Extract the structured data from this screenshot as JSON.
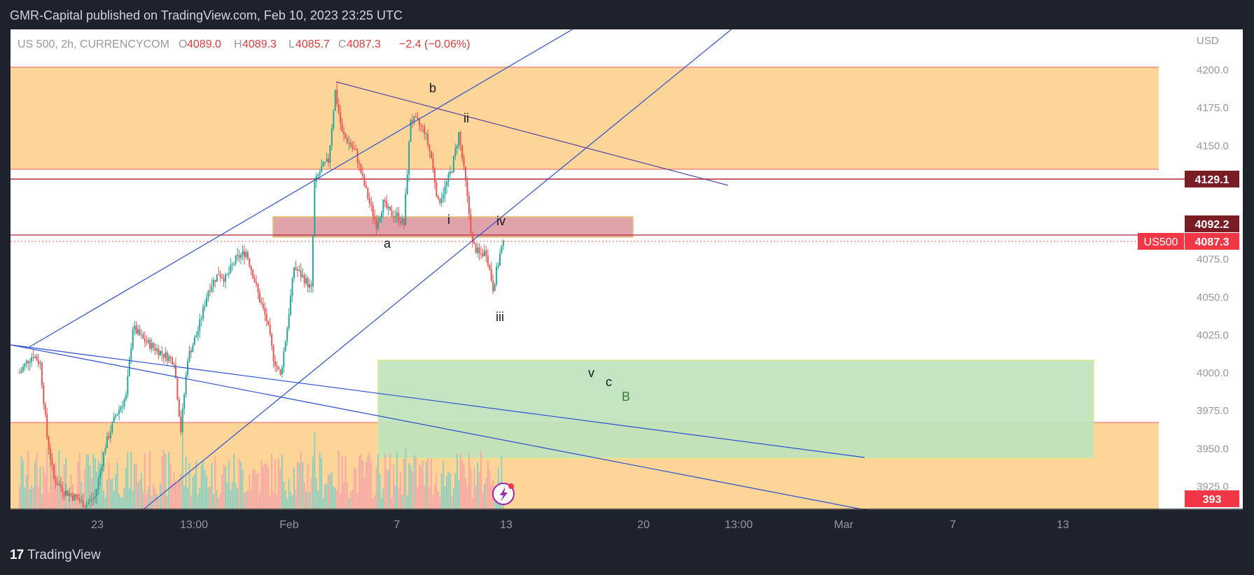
{
  "header": {
    "publisher_line": "GMR-Capital published on TradingView.com, Feb 10, 2023 23:25 UTC"
  },
  "footer": {
    "brand": "TradingView"
  },
  "legend": {
    "symbol": "US 500, 2h, CURRENCYCOM",
    "open_label": "O",
    "open": "4089.0",
    "high_label": "H",
    "high": "4089.3",
    "low_label": "L",
    "low": "4085.7",
    "close_label": "C",
    "close": "4087.3",
    "change": "−2.4 (−0.06%)"
  },
  "currency": "USD",
  "price_badges": {
    "level_4129": "4129.1",
    "level_4092": "4092.2",
    "symbol_tag": "US500",
    "last_price": "4087.3",
    "volume": "393"
  },
  "colors": {
    "background": "#ffffff",
    "supply_zone": "#fdd598",
    "demand_zone_green": "#b5e0b5",
    "resistance_box": "#e0a3aa",
    "trendline": "#2b4fd1",
    "up_candle": "#26a69a",
    "down_candle": "#ef5350",
    "level_line": "#b22833"
  },
  "chart_data": {
    "type": "candlestick",
    "symbol": "US 500",
    "timeframe": "2h",
    "price_axis": {
      "ticks": [
        4200.0,
        4175.0,
        4150.0,
        4125.0,
        4100.0,
        4075.0,
        4050.0,
        4025.0,
        4000.0,
        3975.0,
        3950.0,
        3925.0
      ],
      "tick_labels": [
        "4200.0",
        "4175.0",
        "4150.0",
        "",
        "",
        "4075.0",
        "4050.0",
        "4025.0",
        "4000.0",
        "3975.0",
        "3950.0",
        "3925.0"
      ]
    },
    "time_axis": {
      "labels": [
        "23",
        "13:00",
        "Feb",
        "7",
        "13",
        "20",
        "13:00",
        "Mar",
        "7",
        "13"
      ]
    },
    "price_path": [
      {
        "t": 0,
        "p": 4000
      },
      {
        "t": 2,
        "p": 4007
      },
      {
        "t": 4,
        "p": 4012
      },
      {
        "t": 6,
        "p": 4006
      },
      {
        "t": 8,
        "p": 3958
      },
      {
        "t": 10,
        "p": 3930
      },
      {
        "t": 13,
        "p": 3922
      },
      {
        "t": 16,
        "p": 3918
      },
      {
        "t": 19,
        "p": 3913
      },
      {
        "t": 22,
        "p": 3918
      },
      {
        "t": 25,
        "p": 3952
      },
      {
        "t": 28,
        "p": 3972
      },
      {
        "t": 31,
        "p": 3984
      },
      {
        "t": 33,
        "p": 4030
      },
      {
        "t": 36,
        "p": 4022
      },
      {
        "t": 39,
        "p": 4017
      },
      {
        "t": 42,
        "p": 4012
      },
      {
        "t": 45,
        "p": 4008
      },
      {
        "t": 47,
        "p": 3962
      },
      {
        "t": 49,
        "p": 4010
      },
      {
        "t": 52,
        "p": 4028
      },
      {
        "t": 55,
        "p": 4055
      },
      {
        "t": 58,
        "p": 4066
      },
      {
        "t": 60,
        "p": 4062
      },
      {
        "t": 63,
        "p": 4075
      },
      {
        "t": 66,
        "p": 4080
      },
      {
        "t": 68,
        "p": 4065
      },
      {
        "t": 70,
        "p": 4048
      },
      {
        "t": 72,
        "p": 4035
      },
      {
        "t": 74,
        "p": 4010
      },
      {
        "t": 76,
        "p": 3998
      },
      {
        "t": 78,
        "p": 4030
      },
      {
        "t": 80,
        "p": 4070
      },
      {
        "t": 83,
        "p": 4062
      },
      {
        "t": 85,
        "p": 4055
      },
      {
        "t": 86,
        "p": 4125
      },
      {
        "t": 88,
        "p": 4135
      },
      {
        "t": 90,
        "p": 4140
      },
      {
        "t": 92,
        "p": 4186
      },
      {
        "t": 94,
        "p": 4158
      },
      {
        "t": 96,
        "p": 4152
      },
      {
        "t": 98,
        "p": 4145
      },
      {
        "t": 100,
        "p": 4128
      },
      {
        "t": 102,
        "p": 4112
      },
      {
        "t": 104,
        "p": 4098
      },
      {
        "t": 106,
        "p": 4112
      },
      {
        "t": 108,
        "p": 4105
      },
      {
        "t": 110,
        "p": 4104
      },
      {
        "t": 112,
        "p": 4098
      },
      {
        "t": 114,
        "p": 4168
      },
      {
        "t": 116,
        "p": 4165
      },
      {
        "t": 118,
        "p": 4160
      },
      {
        "t": 120,
        "p": 4142
      },
      {
        "t": 122,
        "p": 4112
      },
      {
        "t": 124,
        "p": 4122
      },
      {
        "t": 126,
        "p": 4135
      },
      {
        "t": 128,
        "p": 4158
      },
      {
        "t": 130,
        "p": 4125
      },
      {
        "t": 132,
        "p": 4085
      },
      {
        "t": 134,
        "p": 4078
      },
      {
        "t": 136,
        "p": 4080
      },
      {
        "t": 138,
        "p": 4056
      },
      {
        "t": 140,
        "p": 4078
      },
      {
        "t": 141,
        "p": 4087.3
      }
    ],
    "last_candle": {
      "open": 4089.0,
      "high": 4089.3,
      "low": 4085.7,
      "close": 4087.3,
      "change": -2.4,
      "change_pct": -0.06
    },
    "horizontal_levels": [
      4129.1,
      4092.2
    ],
    "zones": [
      {
        "kind": "supply",
        "from": 4138,
        "to": 4205
      },
      {
        "kind": "demand",
        "from": 3860,
        "to": 3967
      },
      {
        "kind": "resistance-box",
        "from": 4090,
        "to": 4104
      },
      {
        "kind": "target-box",
        "from": 3944,
        "to": 4009
      }
    ],
    "wave_labels": [
      "b",
      "ii",
      "i",
      "iv",
      "a",
      "iii",
      "v",
      "c",
      "B"
    ],
    "last_volume": 393
  }
}
